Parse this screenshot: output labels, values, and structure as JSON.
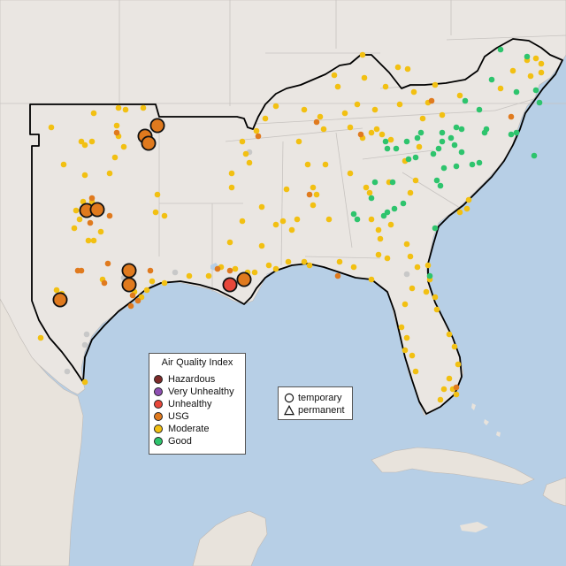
{
  "legend": {
    "title": "Air Quality Index",
    "categories": [
      {
        "label": "Hazardous",
        "color": "#7e2b29"
      },
      {
        "label": "Very Unhealthy",
        "color": "#8e4fb2"
      },
      {
        "label": "Unhealthy",
        "color": "#e8473a"
      },
      {
        "label": "USG",
        "color": "#e07a1e"
      },
      {
        "label": "Moderate",
        "color": "#f2c012"
      },
      {
        "label": "Good",
        "color": "#2ec46d"
      }
    ]
  },
  "monitor_types": [
    {
      "label": "temporary",
      "shape": "circle"
    },
    {
      "label": "permanent",
      "shape": "triangle"
    }
  ],
  "colors": {
    "ocean": "#b7cfe6",
    "land": "#eae6e2",
    "border": "#c7c3c0",
    "region_outline": "#000000",
    "station_gray": "#c8c8c8"
  }
}
